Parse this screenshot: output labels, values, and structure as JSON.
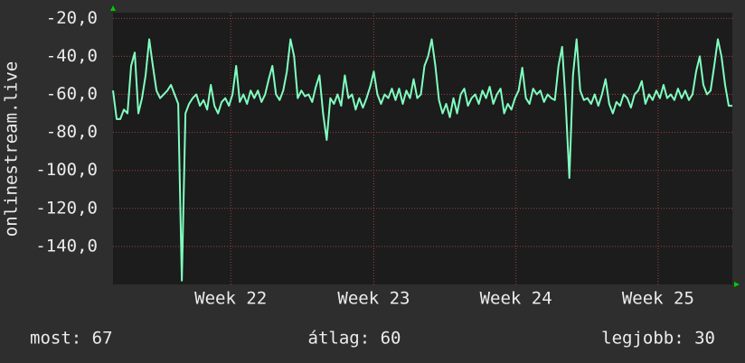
{
  "chart_data": {
    "type": "line",
    "y_label": "onlinestream.live",
    "ylim": [
      -160,
      -17
    ],
    "yticks": [
      {
        "value": -20,
        "label": "-20,0"
      },
      {
        "value": -40,
        "label": "-40,0"
      },
      {
        "value": -60,
        "label": "-60,0"
      },
      {
        "value": -80,
        "label": "-80,0"
      },
      {
        "value": -100,
        "label": "-100,0"
      },
      {
        "value": -120,
        "label": "-120,0"
      },
      {
        "value": -140,
        "label": "-140,0"
      }
    ],
    "xlim": [
      0,
      171
    ],
    "xticks": [
      {
        "value": 32.5,
        "label": "Week 22"
      },
      {
        "value": 72,
        "label": "Week 23"
      },
      {
        "value": 111.25,
        "label": "Week 24"
      },
      {
        "value": 150.5,
        "label": "Week 25"
      }
    ],
    "grid": true,
    "series": [
      {
        "color": "#80ffc0",
        "values": [
          -58,
          -73,
          -73,
          -68,
          -70,
          -45,
          -38,
          -70,
          -62,
          -50,
          -31,
          -45,
          -58,
          -62,
          -60,
          -58,
          -55,
          -60,
          -65,
          -158,
          -70,
          -65,
          -62,
          -60,
          -66,
          -63,
          -68,
          -55,
          -66,
          -70,
          -64,
          -62,
          -66,
          -60,
          -45,
          -64,
          -60,
          -65,
          -58,
          -62,
          -58,
          -64,
          -60,
          -52,
          -45,
          -60,
          -63,
          -58,
          -48,
          -31,
          -40,
          -62,
          -58,
          -61,
          -60,
          -64,
          -56,
          -50,
          -70,
          -84,
          -62,
          -65,
          -60,
          -66,
          -50,
          -62,
          -60,
          -68,
          -62,
          -67,
          -62,
          -56,
          -48,
          -60,
          -65,
          -60,
          -62,
          -57,
          -63,
          -57,
          -65,
          -58,
          -62,
          -52,
          -62,
          -60,
          -45,
          -40,
          -31,
          -45,
          -63,
          -70,
          -65,
          -72,
          -62,
          -70,
          -60,
          -57,
          -66,
          -62,
          -60,
          -65,
          -58,
          -62,
          -56,
          -65,
          -60,
          -57,
          -70,
          -65,
          -68,
          -62,
          -58,
          -46,
          -62,
          -65,
          -57,
          -60,
          -58,
          -64,
          -60,
          -62,
          -63,
          -45,
          -35,
          -65,
          -104,
          -50,
          -31,
          -58,
          -63,
          -62,
          -65,
          -60,
          -66,
          -60,
          -52,
          -65,
          -70,
          -64,
          -66,
          -60,
          -62,
          -67,
          -60,
          -58,
          -53,
          -65,
          -60,
          -63,
          -58,
          -62,
          -55,
          -62,
          -60,
          -63,
          -57,
          -62,
          -58,
          -63,
          -60,
          -48,
          -40,
          -55,
          -60,
          -58,
          -45,
          -31,
          -40,
          -55,
          -66,
          -66
        ]
      }
    ],
    "stats": [
      "most: 67",
      "átlag: 60",
      "legjobb: 30"
    ]
  }
}
